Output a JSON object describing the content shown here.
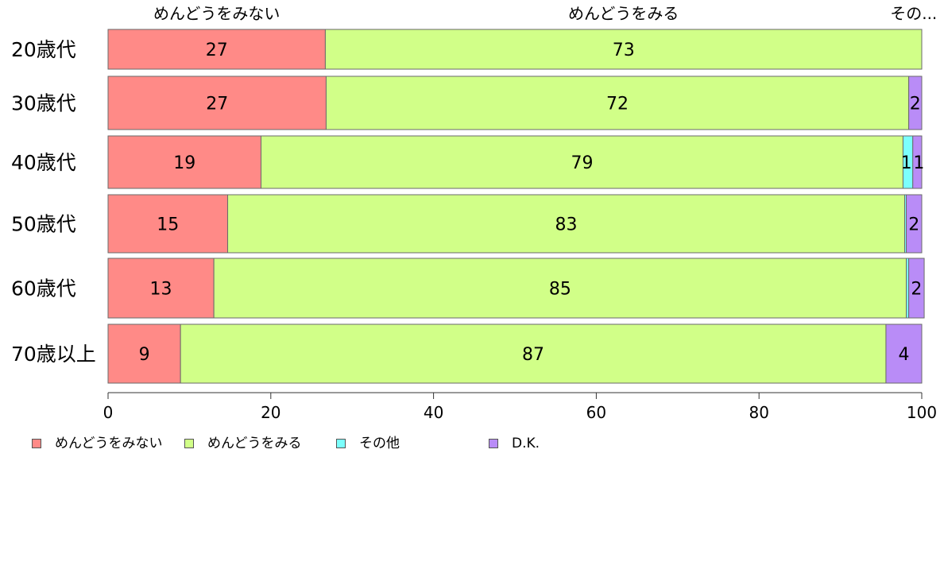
{
  "chart_data": {
    "type": "bar",
    "orientation": "horizontal",
    "stacked": true,
    "categories": [
      "20歳代",
      "30歳代",
      "40歳代",
      "50歳代",
      "60歳代",
      "70歳以上"
    ],
    "series": [
      {
        "name": "めんどうをみない",
        "color": "#ff8a87",
        "values": [
          26.7,
          26.8,
          18.8,
          14.7,
          13.0,
          8.9
        ]
      },
      {
        "name": "めんどうをみる",
        "color": "#d1ff88",
        "values": [
          73.3,
          71.6,
          78.9,
          83.2,
          85.1,
          86.7
        ]
      },
      {
        "name": "その他",
        "color": "#7bfffc",
        "values": [
          0,
          0,
          1.2,
          0.2,
          0.3,
          0
        ]
      },
      {
        "name": "D.K.",
        "color": "#b98cf7",
        "values": [
          0,
          1.6,
          1.1,
          1.9,
          1.9,
          4.4
        ]
      }
    ],
    "data_labels": [
      [
        "27",
        "73",
        "",
        ""
      ],
      [
        "27",
        "72",
        "",
        "2"
      ],
      [
        "19",
        "79",
        "1",
        "1"
      ],
      [
        "15",
        "83",
        "",
        "2"
      ],
      [
        "13",
        "85",
        "",
        "2"
      ],
      [
        "9",
        "87",
        "",
        "4"
      ]
    ],
    "top_labels": [
      "めんどうをみない",
      "めんどうをみる",
      "その..."
    ],
    "xlim": [
      0,
      100
    ],
    "xticks": [
      "0",
      "20",
      "40",
      "60",
      "80",
      "100"
    ],
    "legend": {
      "position": "bottom-left",
      "items": [
        {
          "label": "めんどうをみない",
          "color": "#ff8a87"
        },
        {
          "label": "めんどうをみる",
          "color": "#d1ff88"
        },
        {
          "label": "その他",
          "color": "#7bfffc"
        },
        {
          "label": "D.K.",
          "color": "#b98cf7"
        }
      ]
    }
  }
}
